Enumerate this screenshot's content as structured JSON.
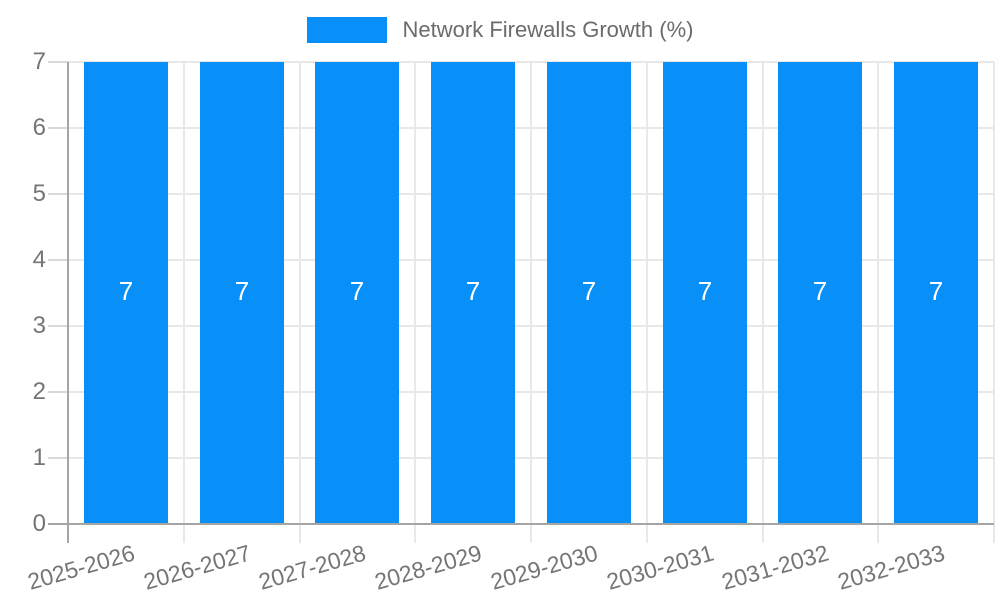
{
  "legend": {
    "label": "Network Firewalls Growth (%)",
    "swatch_color": "#0990f8"
  },
  "chart_data": {
    "type": "bar",
    "title": "Network Firewalls Growth (%)",
    "categories": [
      "2025-2026",
      "2026-2027",
      "2027-2028",
      "2028-2029",
      "2029-2030",
      "2030-2031",
      "2031-2032",
      "2032-2033"
    ],
    "series": [
      {
        "name": "Network Firewalls Growth (%)",
        "values": [
          7,
          7,
          7,
          7,
          7,
          7,
          7,
          7
        ]
      }
    ],
    "bar_labels": [
      "7",
      "7",
      "7",
      "7",
      "7",
      "7",
      "7",
      "7"
    ],
    "xlabel": "",
    "ylabel": "",
    "ylim": [
      0,
      7
    ],
    "yticks": [
      "0",
      "1",
      "2",
      "3",
      "4",
      "5",
      "6",
      "7"
    ],
    "grid": "on",
    "legend_position": "top-center",
    "colors": {
      "bar": "#0990f8",
      "bar_label": "#ffffff",
      "axis_text": "#757575",
      "legend_text": "#6b6b6b",
      "gridline": "#e8e8e8",
      "tick": "#d9d9d9",
      "axis_line": "#a5a5a5",
      "background": "#ffffff"
    }
  }
}
